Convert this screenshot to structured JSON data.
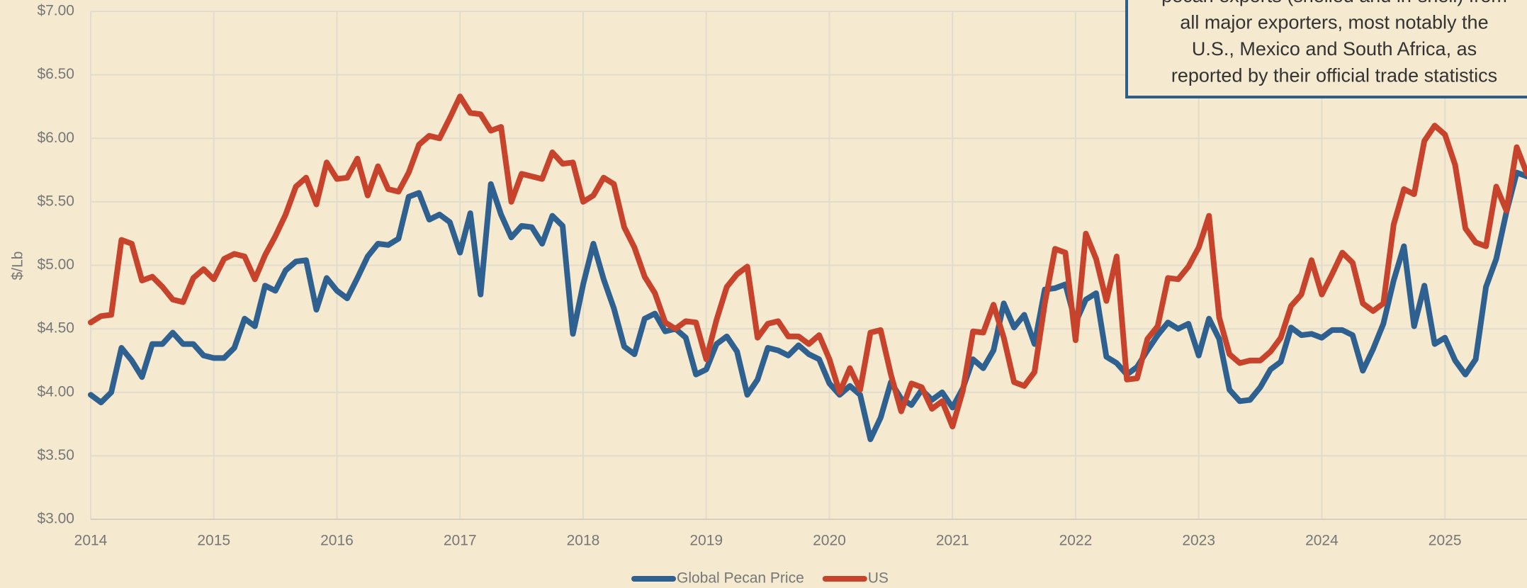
{
  "chart_data": {
    "type": "line",
    "y_label": "$/Lb",
    "annotation": [
      "pecan exports (shelled and in-shell) from",
      "all major exporters, most notably the",
      "U.S., Mexico and South Africa, as",
      "reported by their official trade statistics"
    ],
    "categories": [
      "2014",
      null,
      null,
      null,
      null,
      null,
      null,
      null,
      null,
      null,
      null,
      null,
      "2015",
      null,
      null,
      null,
      null,
      null,
      null,
      null,
      null,
      null,
      null,
      null,
      "2016",
      null,
      null,
      null,
      null,
      null,
      null,
      null,
      null,
      null,
      null,
      null,
      "2017",
      null,
      null,
      null,
      null,
      null,
      null,
      null,
      null,
      null,
      null,
      null,
      "2018",
      null,
      null,
      null,
      null,
      null,
      null,
      null,
      null,
      null,
      null,
      null,
      "2019",
      null,
      null,
      null,
      null,
      null,
      null,
      null,
      null,
      null,
      null,
      null,
      "2020",
      null,
      null,
      null,
      null,
      null,
      null,
      null,
      null,
      null,
      null,
      null,
      "2021",
      null,
      null,
      null,
      null,
      null,
      null,
      null,
      null,
      null,
      null,
      null,
      "2022",
      null,
      null,
      null,
      null,
      null,
      null,
      null,
      null,
      null,
      null,
      null,
      "2023",
      null,
      null,
      null,
      null,
      null,
      null,
      null,
      null,
      null,
      null,
      null,
      "2024",
      null,
      null,
      null,
      null,
      null,
      null,
      null,
      null,
      null,
      null,
      null,
      "2025",
      null,
      null,
      null,
      null,
      null,
      null,
      null,
      null
    ],
    "series": [
      {
        "name": "Global Pecan Price",
        "color": "#2e6090",
        "values": [
          3.98,
          3.92,
          4.0,
          4.35,
          4.25,
          4.12,
          4.38,
          4.38,
          4.47,
          4.38,
          4.38,
          4.29,
          4.27,
          4.27,
          4.35,
          4.58,
          4.52,
          4.84,
          4.8,
          4.96,
          5.03,
          5.04,
          4.65,
          4.9,
          4.8,
          4.74,
          4.9,
          5.07,
          5.17,
          5.16,
          5.21,
          5.54,
          5.57,
          5.36,
          5.4,
          5.34,
          5.1,
          5.41,
          4.77,
          5.64,
          5.4,
          5.22,
          5.31,
          5.3,
          5.17,
          5.39,
          5.31,
          4.46,
          4.85,
          5.17,
          4.89,
          4.66,
          4.36,
          4.3,
          4.58,
          4.62,
          4.48,
          4.5,
          4.43,
          4.14,
          4.18,
          4.38,
          4.44,
          4.32,
          3.98,
          4.1,
          4.35,
          4.33,
          4.29,
          4.37,
          4.3,
          4.26,
          4.07,
          3.98,
          4.05,
          3.98,
          3.63,
          3.8,
          4.08,
          3.95,
          3.9,
          4.02,
          3.94,
          4.0,
          3.88,
          4.03,
          4.26,
          4.19,
          4.33,
          4.7,
          4.51,
          4.61,
          4.38,
          4.81,
          4.82,
          4.85,
          4.55,
          4.73,
          4.78,
          4.28,
          4.23,
          4.14,
          4.2,
          4.33,
          4.45,
          4.55,
          4.5,
          4.54,
          4.29,
          4.58,
          4.42,
          4.02,
          3.93,
          3.94,
          4.04,
          4.18,
          4.24,
          4.51,
          4.45,
          4.46,
          4.43,
          4.49,
          4.49,
          4.45,
          4.17,
          4.34,
          4.54,
          4.88,
          5.15,
          4.52,
          4.84,
          4.38,
          4.43,
          4.25,
          4.14,
          4.26,
          4.83,
          5.05,
          5.42,
          5.73,
          5.7
        ]
      },
      {
        "name": "US",
        "color": "#c8432b",
        "values": [
          4.55,
          4.6,
          4.61,
          5.2,
          5.17,
          4.88,
          4.91,
          4.83,
          4.73,
          4.71,
          4.9,
          4.97,
          4.89,
          5.05,
          5.09,
          5.07,
          4.89,
          5.08,
          5.23,
          5.4,
          5.62,
          5.69,
          5.48,
          5.81,
          5.68,
          5.69,
          5.84,
          5.55,
          5.78,
          5.6,
          5.58,
          5.73,
          5.95,
          6.02,
          6.0,
          6.16,
          6.33,
          6.2,
          6.19,
          6.06,
          6.09,
          5.5,
          5.72,
          5.7,
          5.68,
          5.89,
          5.8,
          5.81,
          5.5,
          5.55,
          5.69,
          5.64,
          5.3,
          5.14,
          4.91,
          4.78,
          4.55,
          4.5,
          4.56,
          4.55,
          4.26,
          4.57,
          4.83,
          4.93,
          4.99,
          4.43,
          4.54,
          4.56,
          4.44,
          4.44,
          4.38,
          4.45,
          4.26,
          4.0,
          4.19,
          4.02,
          4.47,
          4.49,
          4.14,
          3.85,
          4.07,
          4.04,
          3.87,
          3.93,
          3.73,
          4.01,
          4.48,
          4.47,
          4.69,
          4.43,
          4.08,
          4.05,
          4.16,
          4.7,
          5.13,
          5.1,
          4.41,
          5.25,
          5.05,
          4.72,
          5.07,
          4.1,
          4.11,
          4.42,
          4.52,
          4.9,
          4.89,
          4.99,
          5.14,
          5.39,
          4.59,
          4.3,
          4.23,
          4.25,
          4.25,
          4.32,
          4.43,
          4.68,
          4.77,
          5.04,
          4.77,
          4.93,
          5.1,
          5.02,
          4.7,
          4.64,
          4.7,
          5.32,
          5.6,
          5.56,
          5.98,
          6.1,
          6.03,
          5.79,
          5.29,
          5.18,
          5.15,
          5.62,
          5.43,
          5.93,
          5.72
        ]
      }
    ],
    "ylim": [
      3,
      7
    ],
    "yticks": [
      {
        "value": 3,
        "label": "$3.00"
      },
      {
        "value": 3.5,
        "label": "$3.50"
      },
      {
        "value": 4,
        "label": "$4.00"
      },
      {
        "value": 4.5,
        "label": "$4.50"
      },
      {
        "value": 5,
        "label": "$5.00"
      },
      {
        "value": 5.5,
        "label": "$5.50"
      },
      {
        "value": 6,
        "label": "$6.00"
      },
      {
        "value": 6.5,
        "label": "$6.50"
      },
      {
        "value": 7,
        "label": "$7.00"
      }
    ],
    "grid": true,
    "legend": "bottom"
  }
}
